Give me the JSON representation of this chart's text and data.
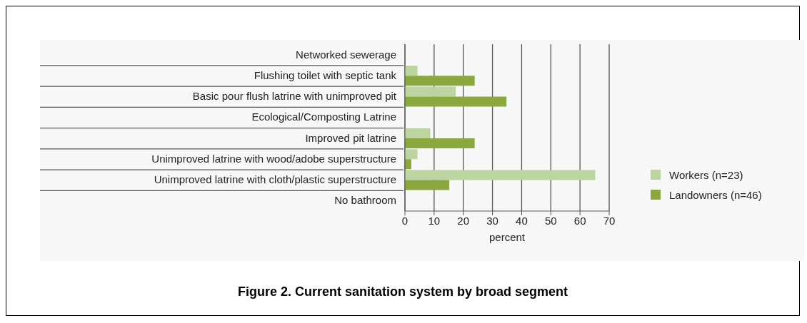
{
  "chart_data": {
    "type": "bar",
    "orientation": "horizontal",
    "title": "Figure 2. Current sanitation system by broad segment",
    "xlabel": "percent",
    "categories": [
      "Networked sewerage",
      "Flushing toilet with septic tank",
      "Basic pour flush latrine with unimproved pit",
      "Ecological/Composting Latrine",
      "Improved pit latrine",
      "Unimproved latrine with wood/adobe superstructure",
      "Unimproved latrine with cloth/plastic superstructure",
      "No bathroom"
    ],
    "series": [
      {
        "name": "Workers (n=23)",
        "color": "#bcd4a0",
        "values": [
          null,
          4.3,
          17.4,
          null,
          8.7,
          4.3,
          65.2,
          null
        ]
      },
      {
        "name": "Landowners (n=46)",
        "color": "#8aa83e",
        "values": [
          null,
          23.9,
          34.8,
          null,
          23.9,
          2.2,
          15.2,
          null
        ]
      }
    ],
    "xlim": [
      0,
      70
    ],
    "xticks": [
      0,
      10,
      20,
      30,
      40,
      50,
      60,
      70
    ],
    "grid": "x",
    "legend": "right"
  }
}
